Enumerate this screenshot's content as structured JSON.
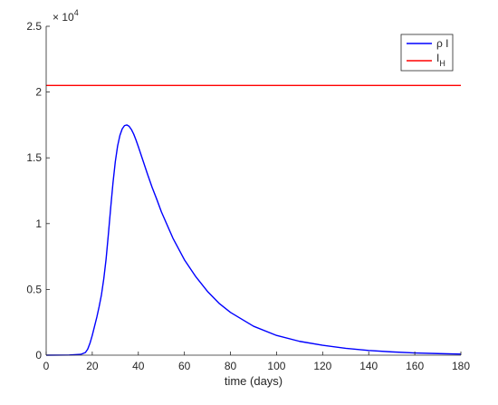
{
  "chart_data": {
    "type": "line",
    "xlabel": "time (days)",
    "ylabel": "",
    "xlim": [
      0,
      180
    ],
    "ylim": [
      0,
      25000
    ],
    "x_ticks": [
      0,
      20,
      40,
      60,
      80,
      100,
      120,
      140,
      160,
      180
    ],
    "y_ticks": [
      {
        "value": 0,
        "label": "0"
      },
      {
        "value": 5000,
        "label": "0.5"
      },
      {
        "value": 10000,
        "label": "1"
      },
      {
        "value": 15000,
        "label": "1.5"
      },
      {
        "value": 20000,
        "label": "2"
      },
      {
        "value": 25000,
        "label": "2.5"
      }
    ],
    "y_exponent": {
      "base": "× 10",
      "power": "4"
    },
    "grid": false,
    "legend_position": "top-right",
    "series": [
      {
        "name": "ρ I",
        "legend_main": "ρ I",
        "color": "#0000ff",
        "x": [
          0,
          10,
          15,
          17,
          18,
          19,
          20,
          21,
          22,
          23,
          24,
          25,
          26,
          27,
          28,
          29,
          30,
          31,
          32,
          33,
          34,
          35,
          36,
          37,
          38,
          39,
          40,
          42,
          44,
          46,
          48,
          50,
          55,
          60,
          65,
          70,
          75,
          80,
          90,
          100,
          110,
          120,
          130,
          140,
          150,
          160,
          170,
          180
        ],
        "y": [
          0,
          10,
          60,
          200,
          450,
          900,
          1500,
          2200,
          2900,
          3700,
          4600,
          5800,
          7300,
          9200,
          11200,
          13100,
          14700,
          15900,
          16700,
          17200,
          17450,
          17500,
          17400,
          17150,
          16800,
          16350,
          15850,
          14800,
          13750,
          12750,
          11850,
          10900,
          8900,
          7250,
          5950,
          4850,
          3950,
          3250,
          2200,
          1500,
          1050,
          750,
          520,
          360,
          250,
          170,
          120,
          80
        ]
      },
      {
        "name": "I_H",
        "legend_main": "I",
        "legend_sub": "H",
        "color": "#ff0000",
        "x": [
          0,
          180
        ],
        "y": [
          20500,
          20500
        ]
      }
    ]
  }
}
